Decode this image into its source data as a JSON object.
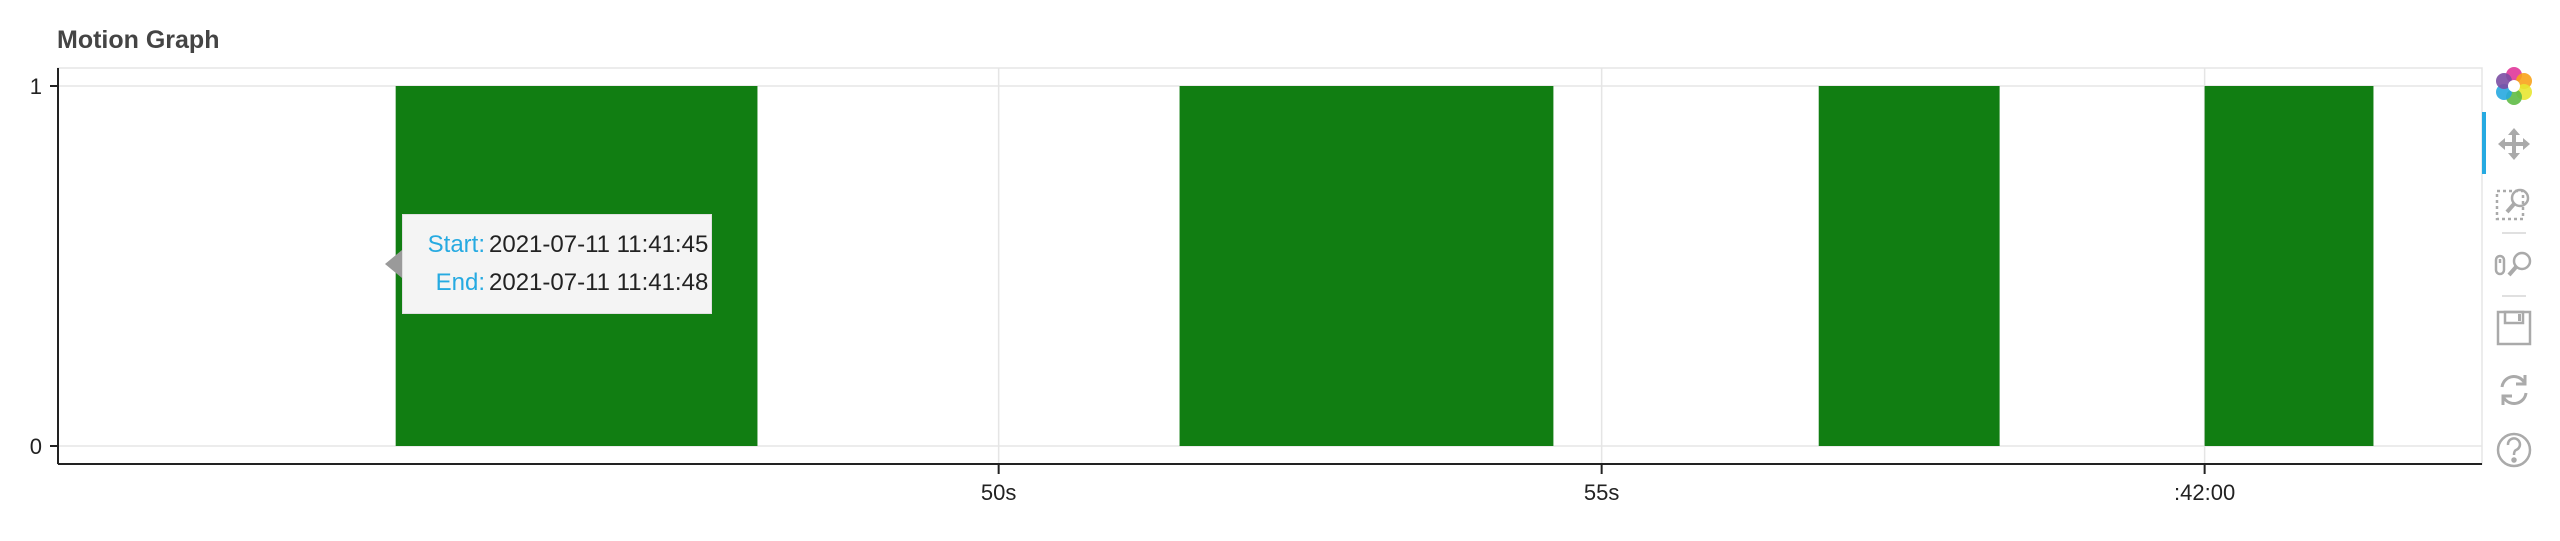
{
  "title": "Motion Graph",
  "chart_data": {
    "type": "bar",
    "title": "Motion Graph",
    "x_axis": {
      "type": "datetime",
      "range": [
        "2021-07-11 11:41:42.2",
        "2021-07-11 11:42:02.3"
      ],
      "tick_labels": [
        "50s",
        "55s",
        ":42:00"
      ],
      "tick_values": [
        "2021-07-11 11:41:50",
        "2021-07-11 11:41:55",
        "2021-07-11 11:42:00"
      ]
    },
    "y_axis": {
      "range": [
        -0.05,
        1.05
      ],
      "tick_labels": [
        "0",
        "1"
      ],
      "tick_values": [
        0,
        1
      ]
    },
    "grid": true,
    "color": "#117e12",
    "intervals": [
      {
        "start": "2021-07-11 11:41:45",
        "end": "2021-07-11 11:41:48",
        "value": 1
      },
      {
        "start": "2021-07-11 11:41:51.5",
        "end": "2021-07-11 11:41:54.6",
        "value": 1
      },
      {
        "start": "2021-07-11 11:41:56.8",
        "end": "2021-07-11 11:41:58.3",
        "value": 1
      },
      {
        "start": "2021-07-11 11:42:00.0",
        "end": "2021-07-11 11:42:01.4",
        "value": 1
      }
    ]
  },
  "tooltip": {
    "start_label": "Start:",
    "start_value": "2021-07-11 11:41:45",
    "end_label": "End:",
    "end_value": "2021-07-11 11:41:48"
  },
  "toolbar": {
    "tools": [
      "bokeh-logo-icon",
      "pan-icon",
      "box-zoom-icon",
      "wheel-zoom-icon",
      "save-icon",
      "reset-icon",
      "help-icon"
    ]
  }
}
